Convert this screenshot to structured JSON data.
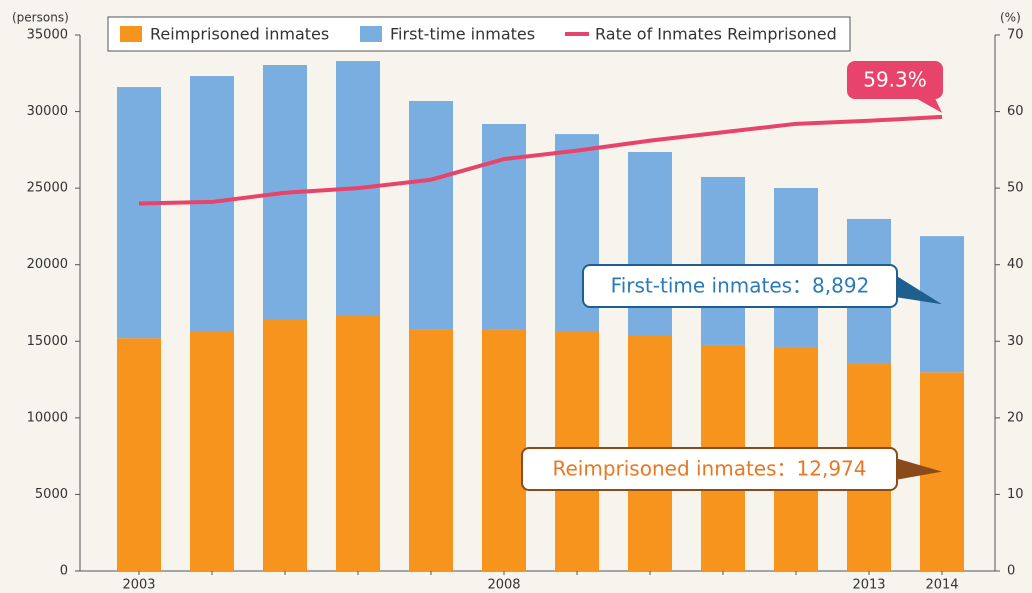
{
  "chart_data": {
    "type": "bar_line",
    "y_label": "(persons)",
    "y2_label": "(%)",
    "categories": [
      "2003",
      null,
      null,
      null,
      null,
      "2008",
      null,
      null,
      null,
      null,
      "2013",
      "2014"
    ],
    "ylim": [
      0,
      35000
    ],
    "yticks": [
      0,
      5000,
      10000,
      15000,
      20000,
      25000,
      30000,
      35000
    ],
    "y2lim": [
      0,
      70
    ],
    "y2ticks": [
      0,
      10,
      20,
      30,
      40,
      50,
      60,
      70
    ],
    "series": [
      {
        "name": "Reimprisoned inmates",
        "color": "#f7941d",
        "stack": true,
        "values": [
          15200,
          15670,
          16390,
          16650,
          15740,
          15740,
          15670,
          15345,
          14760,
          14630,
          13520,
          12974
        ],
        "value_labels": [
          null,
          null,
          null,
          null,
          null,
          null,
          null,
          null,
          null,
          null,
          null,
          "Reimprisoned inmates：12,974"
        ]
      },
      {
        "name": "First-time inmates",
        "color": "#7aaee0",
        "stack": true,
        "values": [
          16400,
          16650,
          16650,
          16650,
          14950,
          13450,
          12860,
          12015,
          10970,
          10380,
          9470,
          8892
        ],
        "value_labels": [
          null,
          null,
          null,
          null,
          null,
          null,
          null,
          null,
          null,
          null,
          null,
          "First-time inmates：8,892"
        ]
      },
      {
        "name": "Rate of Inmates Reimprisoned",
        "color": "#e8436a",
        "axis": "y2",
        "kind": "line",
        "values": [
          48.0,
          48.2,
          49.4,
          50.0,
          51.1,
          53.8,
          54.9,
          56.2,
          57.3,
          58.4,
          58.8,
          59.3
        ],
        "value_labels": [
          null,
          null,
          null,
          null,
          null,
          null,
          null,
          null,
          null,
          null,
          null,
          "59.3%"
        ]
      }
    ]
  }
}
